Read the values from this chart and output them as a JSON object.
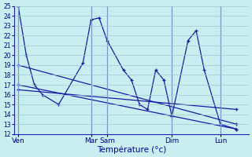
{
  "background_color": "#c8eef0",
  "grid_color": "#a0c8d8",
  "line_color": "#1a1aaa",
  "xlabel": "Température (°c)",
  "ylim": [
    12,
    25
  ],
  "xlim": [
    0,
    28
  ],
  "x_tick_labels": [
    "Ven",
    "Mar",
    "Sam",
    "Dim",
    "Lun"
  ],
  "x_tick_positions": [
    0,
    9,
    11,
    19,
    25
  ],
  "x_sep_positions": [
    0,
    9,
    11,
    19,
    25
  ],
  "line_main": {
    "x": [
      0,
      1,
      2,
      3,
      5,
      8,
      9,
      10,
      11,
      13,
      14,
      15,
      16,
      17,
      18,
      19,
      21,
      22,
      23,
      25,
      27
    ],
    "y": [
      25,
      20,
      17,
      16,
      15,
      19.2,
      23.6,
      23.8,
      21.5,
      18.5,
      17.5,
      15,
      14.5,
      18.5,
      17.5,
      13.8,
      21.5,
      22.5,
      18.5,
      13.0,
      12.5
    ]
  },
  "line_trend1": {
    "x": [
      0,
      27
    ],
    "y": [
      19.0,
      13.0
    ]
  },
  "line_trend2": {
    "x": [
      0,
      27
    ],
    "y": [
      17.0,
      12.5
    ]
  },
  "line_trend3": {
    "x": [
      0,
      27
    ],
    "y": [
      16.5,
      14.5
    ]
  },
  "n_x_grid": 28
}
